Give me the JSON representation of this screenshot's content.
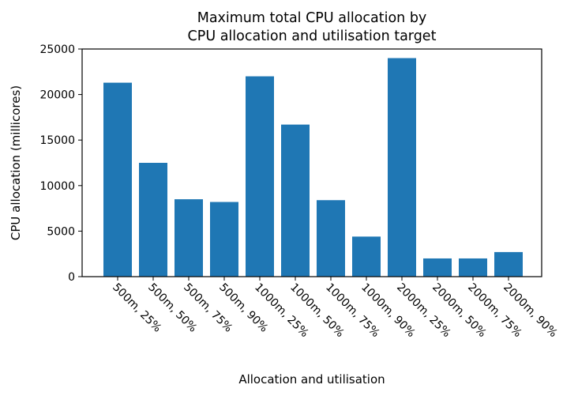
{
  "chart_data": {
    "type": "bar",
    "title_line1": "Maximum total CPU allocation by",
    "title_line2": "CPU allocation and utilisation target",
    "xlabel": "Allocation and utilisation",
    "ylabel": "CPU allocation (millicores)",
    "categories": [
      "500m, 25%",
      "500m, 50%",
      "500m, 75%",
      "500m, 90%",
      "1000m, 25%",
      "1000m, 50%",
      "1000m, 75%",
      "1000m, 90%",
      "2000m, 25%",
      "2000m, 50%",
      "2000m, 75%",
      "2000m, 90%"
    ],
    "values": [
      21300,
      12500,
      8500,
      8200,
      22000,
      16700,
      8400,
      4400,
      24000,
      2000,
      2000,
      2700
    ],
    "ylim": [
      0,
      25000
    ],
    "yticks": [
      "0",
      "5000",
      "10000",
      "15000",
      "20000",
      "25000"
    ],
    "bar_color": "#1f77b4",
    "grid": false,
    "legend": "none"
  }
}
